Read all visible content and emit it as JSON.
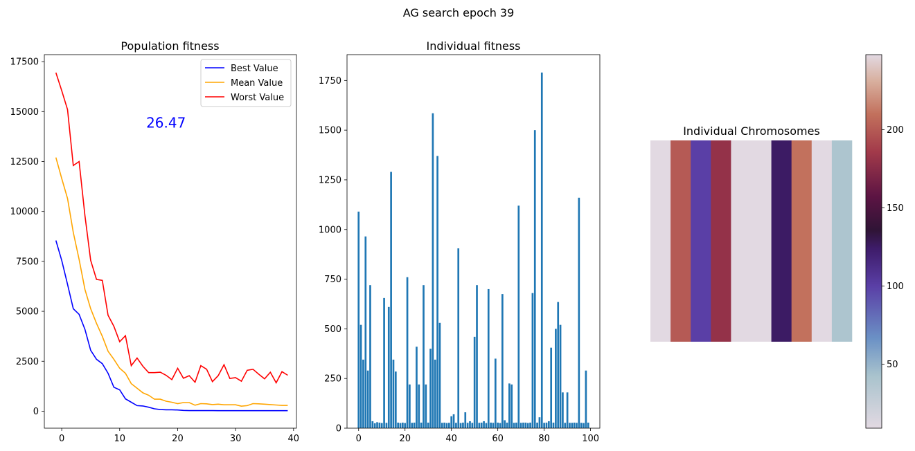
{
  "figure": {
    "title": "AG search epoch 39"
  },
  "chart_data": [
    {
      "type": "line",
      "title": "Population fitness",
      "xlabel": "",
      "ylabel": "",
      "xlim": [
        -3,
        40.5
      ],
      "ylim": [
        -850,
        17850
      ],
      "xticks": [
        0,
        10,
        20,
        30,
        40
      ],
      "yticks": [
        0,
        2500,
        5000,
        7500,
        10000,
        12500,
        15000,
        17500
      ],
      "grid": false,
      "legend": "top-right",
      "annotation": {
        "text": "26.47",
        "x": 18,
        "y": 14200,
        "color": "#0000ff"
      },
      "x": [
        -1,
        0,
        1,
        2,
        3,
        4,
        5,
        6,
        7,
        8,
        9,
        10,
        11,
        12,
        13,
        14,
        15,
        16,
        17,
        18,
        19,
        20,
        21,
        22,
        23,
        24,
        25,
        26,
        27,
        28,
        29,
        30,
        31,
        32,
        33,
        34,
        35,
        36,
        37,
        38,
        39
      ],
      "series": [
        {
          "name": "Best Value",
          "color": "#0000ff",
          "values": [
            8550,
            7550,
            6350,
            5130,
            4850,
            4100,
            3050,
            2600,
            2380,
            1900,
            1200,
            1070,
            620,
            450,
            280,
            260,
            200,
            120,
            80,
            70,
            70,
            60,
            40,
            30,
            30,
            30,
            28,
            28,
            27,
            27,
            27,
            27,
            27,
            27,
            27,
            27,
            27,
            26.5,
            26.5,
            26.5,
            26.47
          ]
        },
        {
          "name": "Mean Value",
          "color": "#ffa500",
          "values": [
            12700,
            11650,
            10650,
            8950,
            7600,
            6100,
            5130,
            4400,
            3750,
            3000,
            2600,
            2150,
            1900,
            1380,
            1150,
            920,
            800,
            600,
            600,
            500,
            450,
            380,
            430,
            430,
            300,
            380,
            370,
            330,
            350,
            320,
            320,
            320,
            250,
            280,
            380,
            370,
            350,
            330,
            310,
            290,
            290
          ]
        },
        {
          "name": "Worst Value",
          "color": "#ff0000",
          "values": [
            16950,
            16050,
            15100,
            12300,
            12500,
            9800,
            7550,
            6600,
            6550,
            4800,
            4250,
            3480,
            3780,
            2280,
            2660,
            2250,
            1930,
            1930,
            1950,
            1800,
            1580,
            2150,
            1650,
            1780,
            1450,
            2280,
            2100,
            1480,
            1780,
            2330,
            1640,
            1680,
            1500,
            2050,
            2100,
            1850,
            1620,
            1950,
            1420,
            1980,
            1800
          ]
        }
      ]
    },
    {
      "type": "bar",
      "title": "Individual fitness",
      "xlabel": "",
      "ylabel": "",
      "xlim": [
        -5,
        104
      ],
      "ylim": [
        0,
        1880
      ],
      "xticks": [
        0,
        20,
        40,
        60,
        80,
        100
      ],
      "yticks": [
        0,
        250,
        500,
        750,
        1000,
        1250,
        1500,
        1750
      ],
      "grid": false,
      "color": "#1f77b4",
      "categories": [
        0,
        1,
        2,
        3,
        4,
        5,
        6,
        7,
        8,
        9,
        10,
        11,
        12,
        13,
        14,
        15,
        16,
        17,
        18,
        19,
        20,
        21,
        22,
        23,
        24,
        25,
        26,
        27,
        28,
        29,
        30,
        31,
        32,
        33,
        34,
        35,
        36,
        37,
        38,
        39,
        40,
        41,
        42,
        43,
        44,
        45,
        46,
        47,
        48,
        49,
        50,
        51,
        52,
        53,
        54,
        55,
        56,
        57,
        58,
        59,
        60,
        61,
        62,
        63,
        64,
        65,
        66,
        67,
        68,
        69,
        70,
        71,
        72,
        73,
        74,
        75,
        76,
        77,
        78,
        79,
        80,
        81,
        82,
        83,
        84,
        85,
        86,
        87,
        88,
        89,
        90,
        91,
        92,
        93,
        94,
        95,
        96,
        97,
        98,
        99
      ],
      "values": [
        1090,
        520,
        345,
        965,
        290,
        720,
        35,
        25,
        30,
        28,
        26,
        655,
        27,
        610,
        1290,
        345,
        285,
        28,
        26,
        28,
        26,
        760,
        220,
        27,
        28,
        410,
        220,
        28,
        720,
        220,
        28,
        400,
        1585,
        345,
        1370,
        530,
        27,
        28,
        26,
        27,
        60,
        70,
        27,
        905,
        26,
        28,
        80,
        27,
        35,
        27,
        460,
        720,
        27,
        28,
        35,
        26,
        700,
        28,
        27,
        350,
        28,
        26,
        675,
        40,
        28,
        225,
        220,
        27,
        28,
        1120,
        27,
        28,
        28,
        26,
        28,
        680,
        1500,
        28,
        55,
        1790,
        27,
        28,
        35,
        405,
        28,
        500,
        635,
        520,
        180,
        27,
        180,
        27,
        27,
        28,
        27,
        1160,
        27,
        26,
        290,
        28
      ]
    },
    {
      "type": "heatmap",
      "title": "Individual Chromosomes",
      "xlabel": "",
      "ylabel": "",
      "colormap": "twilight",
      "grid": false,
      "columns": [
        5,
        200,
        100,
        180,
        5,
        5,
        125,
        210,
        5,
        40
      ],
      "colorbar": {
        "range": [
          9,
          248
        ],
        "ticks": [
          50,
          100,
          150,
          200
        ]
      }
    }
  ]
}
